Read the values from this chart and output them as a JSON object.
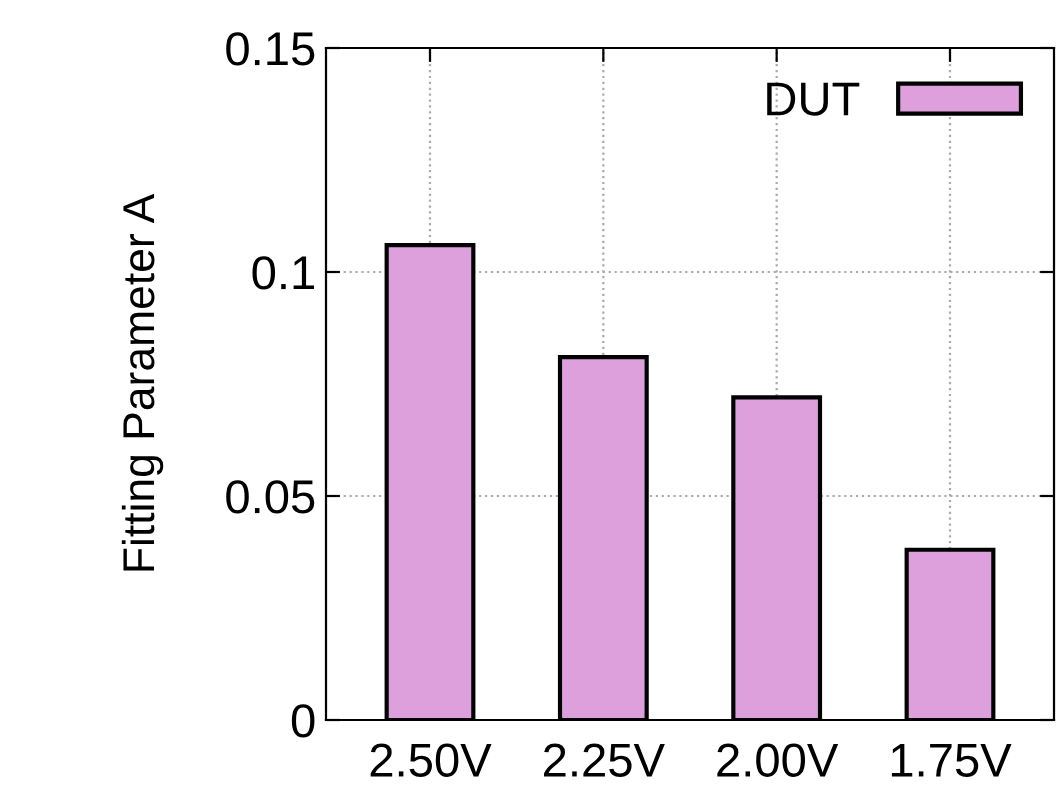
{
  "chart_data": {
    "type": "bar",
    "ylabel": "Fitting Parameter A",
    "categories": [
      "2.50V",
      "2.25V",
      "2.00V",
      "1.75V"
    ],
    "series": [
      {
        "name": "DUT",
        "color": "#dda0dd",
        "values": [
          0.106,
          0.081,
          0.072,
          0.038
        ]
      }
    ],
    "ylim": [
      0,
      0.15
    ],
    "yticks": [
      0,
      {
        "value": 0.05,
        "label": "0.05"
      },
      {
        "value": 0.1,
        "label": "0.1"
      },
      {
        "value": 0.15,
        "label": "0.15"
      }
    ],
    "grid": true,
    "legend": "top right"
  }
}
